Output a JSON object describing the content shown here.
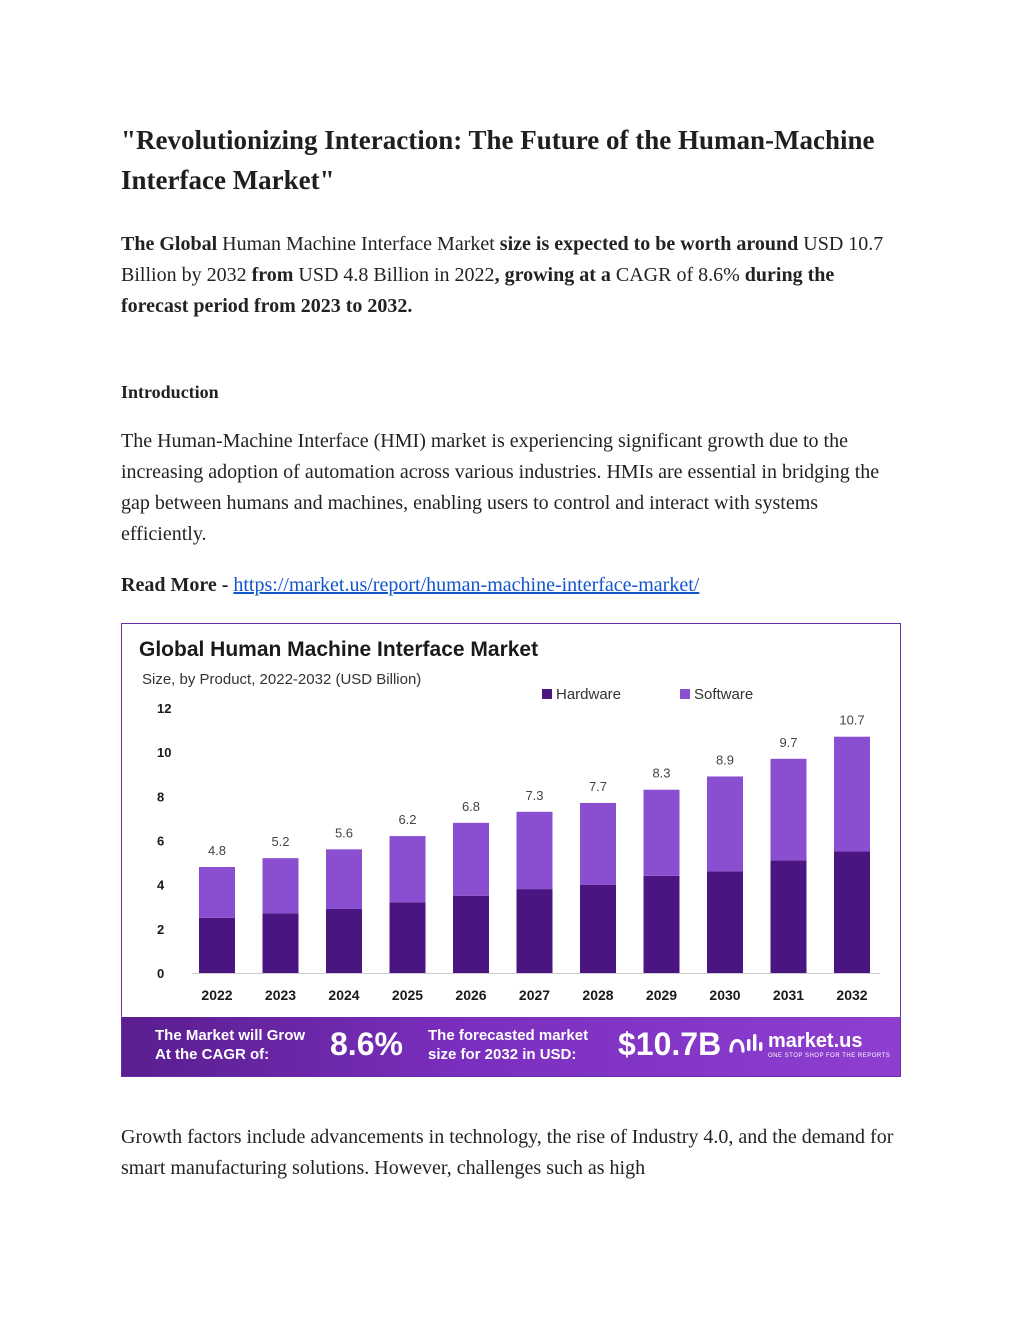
{
  "document": {
    "title": "\"Revolutionizing Interaction: The Future of the Human-Machine Interface Market\"",
    "summary": {
      "p1": "The Global",
      "p2": " Human Machine Interface Market ",
      "p3": "size is expected to be worth around",
      "p4": " USD 10.7 Billion by 2032 ",
      "p5": "from",
      "p6": " USD 4.8 Billion in 2022",
      "p7": ", growing at a",
      "p8": " CAGR of 8.6% ",
      "p9": "during the forecast period from 2023 to 2032."
    },
    "intro_heading": "Introduction",
    "intro_body": "The Human-Machine Interface (HMI) market is experiencing significant growth due to the increasing adoption of automation across various industries. HMIs are essential in bridging the gap between humans and machines, enabling users to control and interact with systems efficiently.",
    "read_more_label": "Read More - ",
    "read_more_link": "https://market.us/report/human-machine-interface-market/",
    "growth_paragraph": " Growth factors include advancements in technology, the rise of Industry 4.0, and the demand for smart manufacturing solutions. However, challenges such as high"
  },
  "chart_data": {
    "type": "bar",
    "title": "Global Human Machine Interface Market",
    "subtitle": "Size, by Product, 2022-2032 (USD Billion)",
    "categories": [
      "2022",
      "2023",
      "2024",
      "2025",
      "2026",
      "2027",
      "2028",
      "2029",
      "2030",
      "2031",
      "2032"
    ],
    "totals": [
      "4.8",
      "5.2",
      "5.6",
      "6.2",
      "6.8",
      "7.3",
      "7.7",
      "8.3",
      "8.9",
      "9.7",
      "10.7"
    ],
    "stacked": true,
    "series": [
      {
        "name": "Hardware",
        "color": "#4a1580",
        "values": [
          2.5,
          2.7,
          2.9,
          3.2,
          3.5,
          3.8,
          4.0,
          4.4,
          4.6,
          5.1,
          5.5
        ]
      },
      {
        "name": "Software",
        "color": "#8a4fd0",
        "values": [
          2.3,
          2.5,
          2.7,
          3.0,
          3.3,
          3.5,
          3.7,
          3.9,
          4.3,
          4.6,
          5.2
        ]
      }
    ],
    "ylim": [
      0,
      12
    ],
    "yticks": [
      "0",
      "2",
      "4",
      "6",
      "8",
      "10",
      "12"
    ],
    "legend_position": "top-right",
    "grid": false
  },
  "banner": {
    "cagr_label_1": "The Market will Grow",
    "cagr_label_2": "At the CAGR of:",
    "cagr_value": "8.6%",
    "size_label_1": "The forecasted market",
    "size_label_2": "size for 2032 in USD:",
    "size_value": "$10.7B",
    "brand_name": "market.us",
    "brand_tagline": "ONE STOP SHOP FOR THE REPORTS"
  }
}
